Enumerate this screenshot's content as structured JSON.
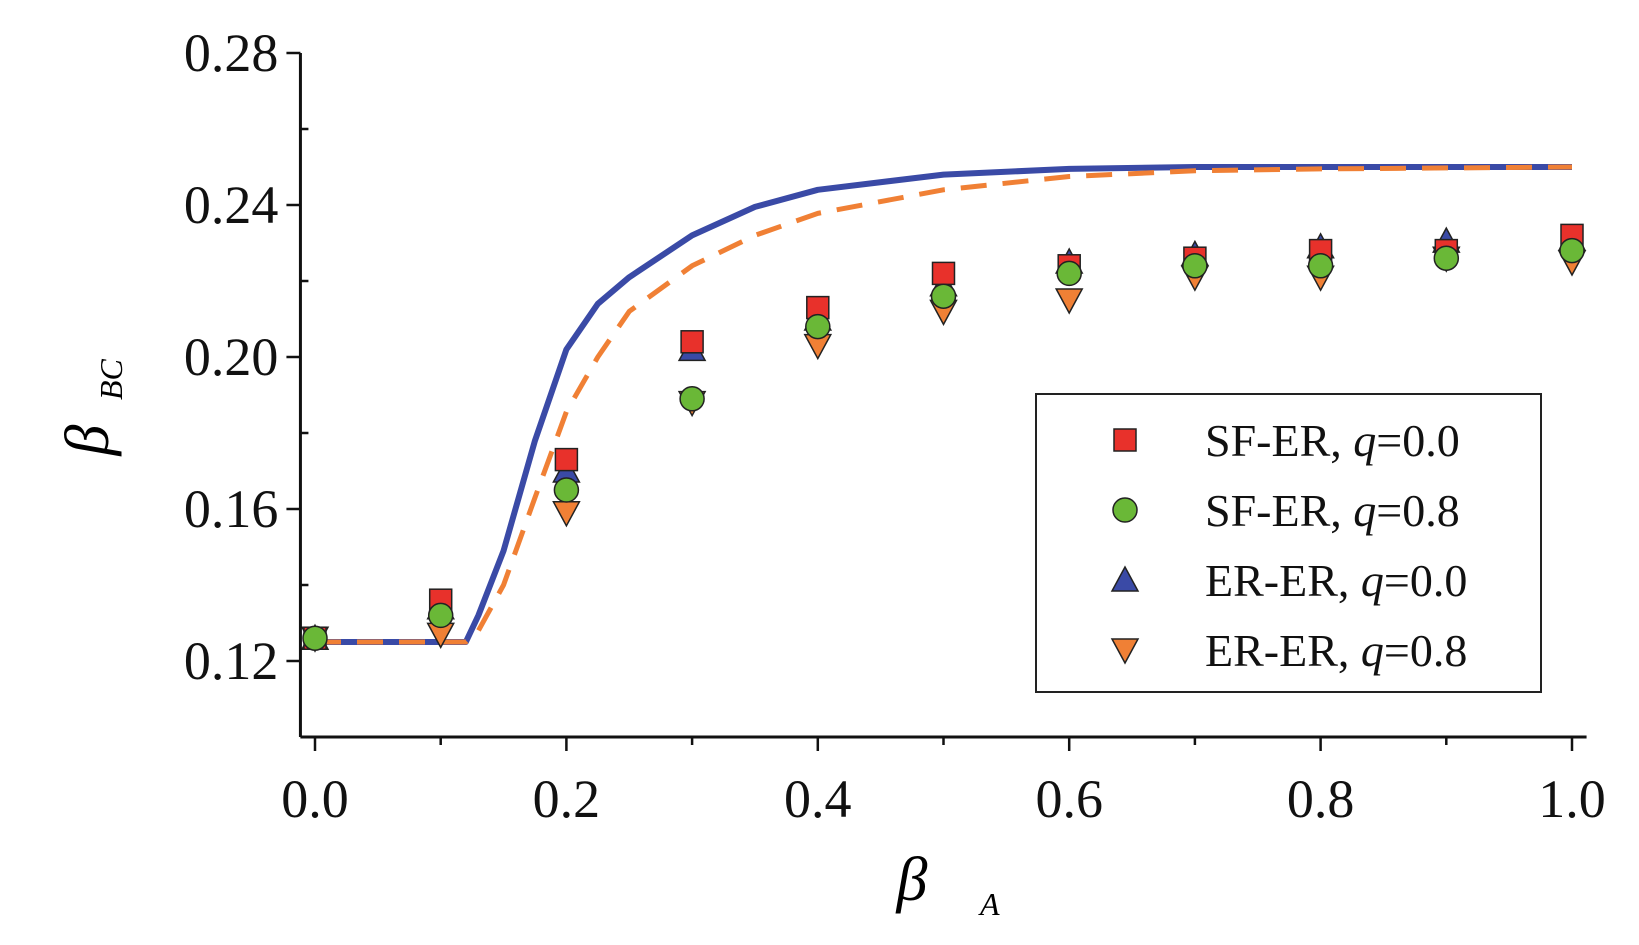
{
  "chart_data": {
    "type": "scatter",
    "title": "",
    "xlabel": "β",
    "xlabel_sub": "A",
    "ylabel": "β",
    "ylabel_sub": "BC",
    "xlim": [
      -0.01,
      1.01
    ],
    "ylim": [
      0.1,
      0.28
    ],
    "xticks": [
      "0.0",
      "0.2",
      "0.4",
      "0.6",
      "0.8",
      "1.0"
    ],
    "xtick_values": [
      0,
      0.2,
      0.4,
      0.6,
      0.8,
      1.0
    ],
    "yticks": [
      "0.12",
      "0.16",
      "0.20",
      "0.24",
      "0.28"
    ],
    "ytick_values": [
      0.12,
      0.16,
      0.2,
      0.24,
      0.28
    ],
    "grid": false,
    "legend_position": "lower-right",
    "x": [
      0,
      0.1,
      0.2,
      0.3,
      0.4,
      0.5,
      0.6,
      0.7,
      0.8,
      0.9,
      1.0
    ],
    "series": [
      {
        "name": "SF-ER, q=0.0",
        "label_prefix": "SF-ER, ",
        "label_q": "q",
        "label_val": "=0.0",
        "marker": "square",
        "color": "#e8312b",
        "values": [
          0.126,
          0.136,
          0.173,
          0.204,
          0.213,
          0.222,
          0.224,
          0.226,
          0.228,
          0.228,
          0.232
        ]
      },
      {
        "name": "SF-ER, q=0.8",
        "label_prefix": "SF-ER, ",
        "label_q": "q",
        "label_val": "=0.8",
        "marker": "circle",
        "color": "#6ab837",
        "values": [
          0.126,
          0.132,
          0.165,
          0.189,
          0.208,
          0.216,
          0.222,
          0.224,
          0.224,
          0.226,
          0.228
        ]
      },
      {
        "name": "ER-ER, q=0.0",
        "label_prefix": "ER-ER, ",
        "label_q": "q",
        "label_val": "=0.0",
        "marker": "triangle-up",
        "color": "#3a4aa6",
        "values": [
          0.126,
          0.134,
          0.17,
          0.202,
          0.21,
          0.219,
          0.225,
          0.227,
          0.229,
          0.2305,
          0.231
        ]
      },
      {
        "name": "ER-ER, q=0.8",
        "label_prefix": "ER-ER, ",
        "label_q": "q",
        "label_val": "=0.8",
        "marker": "triangle-down",
        "color": "#f08035",
        "values": [
          0.126,
          0.127,
          0.159,
          0.188,
          0.203,
          0.212,
          0.215,
          0.221,
          0.221,
          0.226,
          0.225
        ]
      }
    ],
    "lines": [
      {
        "name": "theory-solid",
        "style": "solid",
        "color": "#3a4aa6",
        "x": [
          0,
          0.12,
          0.13,
          0.15,
          0.175,
          0.2,
          0.225,
          0.25,
          0.3,
          0.35,
          0.4,
          0.5,
          0.6,
          0.7,
          0.8,
          1.0
        ],
        "y": [
          0.125,
          0.125,
          0.132,
          0.149,
          0.178,
          0.202,
          0.214,
          0.221,
          0.232,
          0.2395,
          0.244,
          0.248,
          0.2495,
          0.25,
          0.25,
          0.25
        ]
      },
      {
        "name": "theory-dashed",
        "style": "dashed",
        "color": "#f08035",
        "x": [
          0,
          0.12,
          0.13,
          0.15,
          0.175,
          0.2,
          0.225,
          0.25,
          0.3,
          0.35,
          0.4,
          0.5,
          0.6,
          0.7,
          0.8,
          1.0
        ],
        "y": [
          0.125,
          0.125,
          0.128,
          0.14,
          0.163,
          0.1856,
          0.2,
          0.212,
          0.224,
          0.232,
          0.2378,
          0.244,
          0.2475,
          0.249,
          0.2495,
          0.25
        ]
      }
    ]
  }
}
